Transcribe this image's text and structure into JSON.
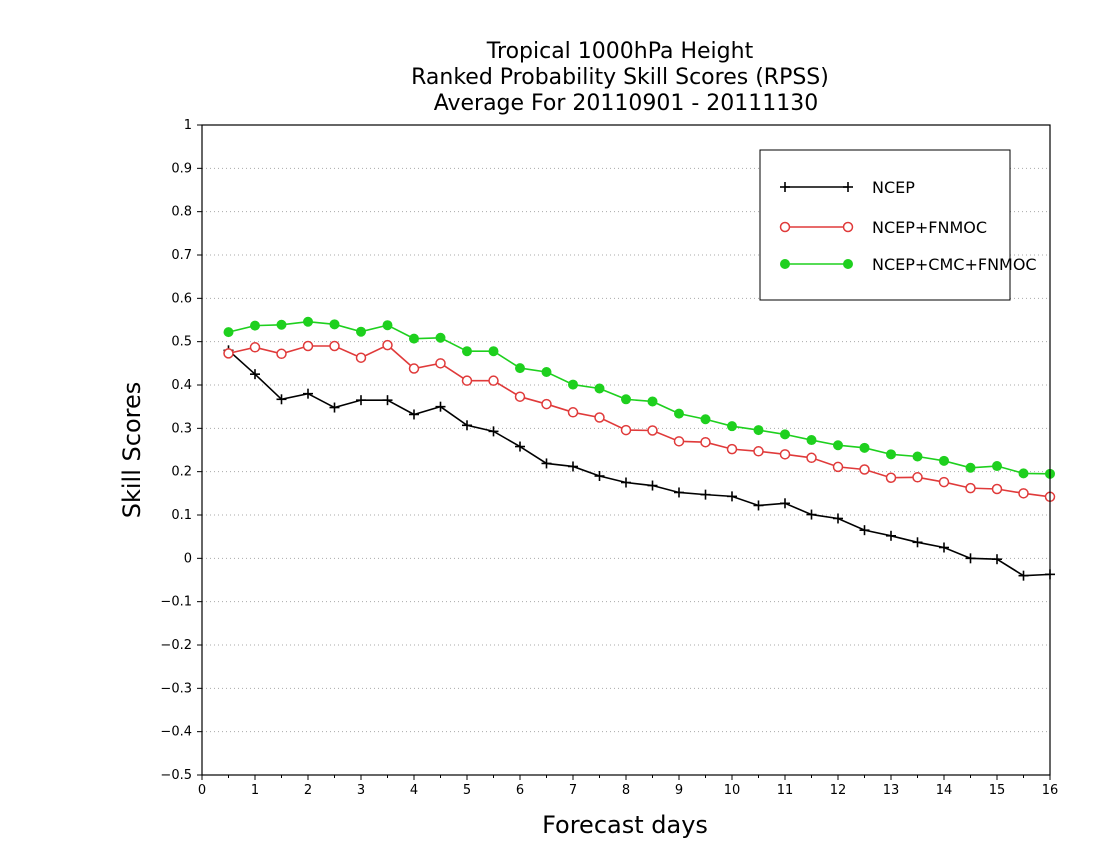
{
  "chart_data": {
    "type": "line",
    "title": [
      "Tropical 1000hPa Height",
      "Ranked Probability Skill Scores (RPSS)",
      "Average For 20110901 - 20111130"
    ],
    "xlabel": "Forecast days",
    "ylabel": "Skill Scores",
    "xlim": [
      0,
      16
    ],
    "ylim": [
      -0.5,
      1
    ],
    "x_ticks": [
      "0",
      "1",
      "2",
      "3",
      "4",
      "5",
      "6",
      "7",
      "8",
      "9",
      "10",
      "11",
      "12",
      "13",
      "14",
      "15",
      "16"
    ],
    "y_ticks": [
      "−0.5",
      "−0.4",
      "−0.3",
      "−0.2",
      "−0.1",
      "0",
      "0.1",
      "0.2",
      "0.3",
      "0.4",
      "0.5",
      "0.6",
      "0.7",
      "0.8",
      "0.9",
      "1"
    ],
    "grid": "horizontal dotted",
    "legend_position": "top-right",
    "x": [
      0.5,
      1,
      1.5,
      2,
      2.5,
      3,
      3.5,
      4,
      4.5,
      5,
      5.5,
      6,
      6.5,
      7,
      7.5,
      8,
      8.5,
      9,
      9.5,
      10,
      10.5,
      11,
      11.5,
      12,
      12.5,
      13,
      13.5,
      14,
      14.5,
      15,
      15.5,
      16
    ],
    "series": [
      {
        "name": "NCEP",
        "color": "#000000",
        "marker": "plus",
        "values": [
          0.48,
          0.425,
          0.367,
          0.38,
          0.348,
          0.365,
          0.365,
          0.332,
          0.35,
          0.307,
          0.293,
          0.258,
          0.219,
          0.212,
          0.19,
          0.175,
          0.168,
          0.152,
          0.147,
          0.143,
          0.122,
          0.127,
          0.101,
          0.092,
          0.065,
          0.052,
          0.037,
          0.025,
          0.0,
          -0.002,
          -0.04,
          -0.037
        ]
      },
      {
        "name": "NCEP+FNMOC",
        "color": "#e03a3a",
        "marker": "open-circle",
        "values": [
          0.473,
          0.487,
          0.472,
          0.49,
          0.49,
          0.463,
          0.492,
          0.438,
          0.45,
          0.41,
          0.41,
          0.373,
          0.356,
          0.337,
          0.325,
          0.296,
          0.295,
          0.27,
          0.268,
          0.252,
          0.247,
          0.24,
          0.232,
          0.211,
          0.205,
          0.186,
          0.187,
          0.176,
          0.162,
          0.16,
          0.15,
          0.142
        ]
      },
      {
        "name": "NCEP+CMC+FNMOC",
        "color": "#1ed01e",
        "marker": "filled-circle",
        "values": [
          0.522,
          0.537,
          0.539,
          0.546,
          0.54,
          0.523,
          0.538,
          0.507,
          0.509,
          0.478,
          0.478,
          0.439,
          0.43,
          0.401,
          0.392,
          0.367,
          0.362,
          0.334,
          0.321,
          0.305,
          0.296,
          0.286,
          0.273,
          0.261,
          0.255,
          0.24,
          0.235,
          0.225,
          0.209,
          0.213,
          0.196,
          0.195
        ]
      }
    ]
  }
}
